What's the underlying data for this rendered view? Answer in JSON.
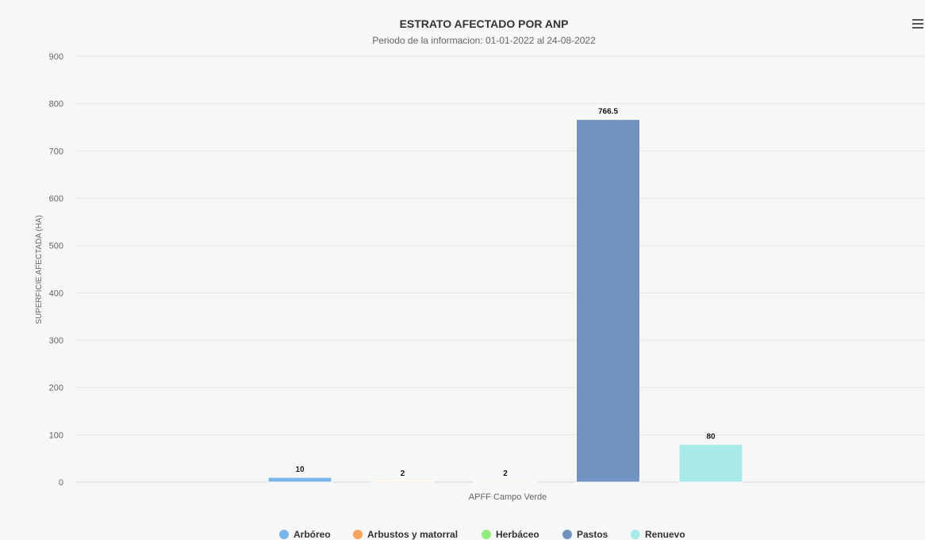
{
  "chart_data": {
    "type": "bar",
    "title": "ESTRATO AFECTADO POR ANP",
    "subtitle": "Periodo de la informacion: 01-01-2022 al 24-08-2022",
    "ylabel": "SUPERFICIE AFECTADA (HA)",
    "xlabel": "",
    "ylim": [
      0,
      900
    ],
    "yticks": [
      0,
      100,
      200,
      300,
      400,
      500,
      600,
      700,
      800,
      900
    ],
    "categories": [
      "APFF Campo Verde"
    ],
    "grid": true,
    "legend_position": "bottom",
    "series": [
      {
        "name": "Arbóreo",
        "color": "#7cb5ec",
        "values": [
          10
        ]
      },
      {
        "name": "Arbustos y matorral",
        "color": "#f7a35c",
        "values": [
          2
        ]
      },
      {
        "name": "Herbáceo",
        "color": "#90ed7d",
        "values": [
          2
        ]
      },
      {
        "name": "Pastos",
        "color": "#7093bf",
        "values": [
          766.5
        ]
      },
      {
        "name": "Renuevo",
        "color": "#a8eaea",
        "values": [
          80
        ]
      }
    ]
  },
  "menu": {
    "icon": "hamburger-menu-icon"
  }
}
